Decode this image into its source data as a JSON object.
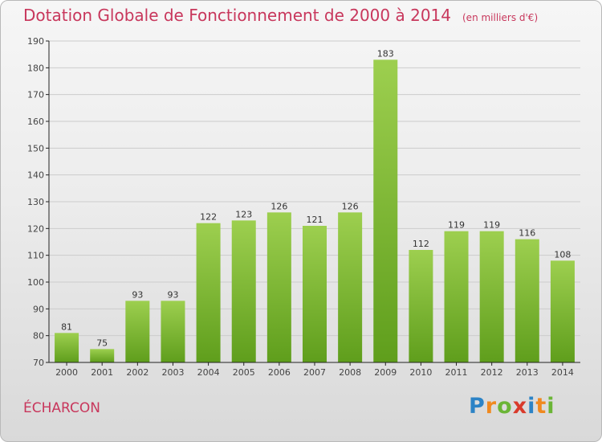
{
  "header": {
    "title": "Dotation Globale de Fonctionnement de 2000 à 2014",
    "unit": "(en milliers d'€)"
  },
  "footer": {
    "commune": "ÉCHARCON",
    "logo_letters": [
      "P",
      "r",
      "o",
      "x",
      "i",
      "t",
      "i"
    ],
    "logo_colors": [
      "#2c83c6",
      "#f0891f",
      "#6bb536",
      "#d93a2b",
      "#2c83c6",
      "#f0891f",
      "#6bb536"
    ]
  },
  "colors": {
    "bar_top": "#9dcf4f",
    "bar_bottom": "#5f9e1c",
    "grid": "#cccccc",
    "axis": "#222222",
    "accent": "#c8375c"
  },
  "chart_data": {
    "type": "bar",
    "title": "Dotation Globale de Fonctionnement de 2000 à 2014",
    "subtitle": "(en milliers d'€)",
    "xlabel": "",
    "ylabel": "",
    "categories": [
      "2000",
      "2001",
      "2002",
      "2003",
      "2004",
      "2005",
      "2006",
      "2007",
      "2008",
      "2009",
      "2010",
      "2011",
      "2012",
      "2013",
      "2014"
    ],
    "values": [
      81,
      75,
      93,
      93,
      122,
      123,
      126,
      121,
      126,
      183,
      112,
      119,
      119,
      116,
      108
    ],
    "ylim": [
      70,
      190
    ],
    "yticks": [
      70,
      80,
      90,
      100,
      110,
      120,
      130,
      140,
      150,
      160,
      170,
      180,
      190
    ],
    "grid": true,
    "data_labels": true
  }
}
